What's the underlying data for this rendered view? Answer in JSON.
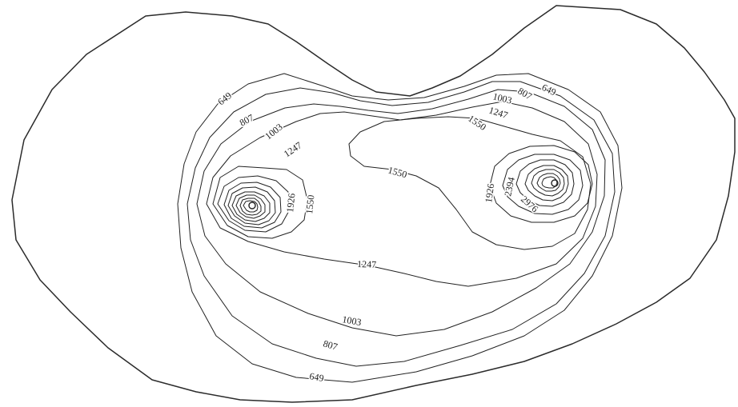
{
  "figure": {
    "description_free": true,
    "colors": {
      "line": "#222222",
      "outer": "#2b2b2b",
      "background": "#ffffff"
    }
  },
  "labels": {
    "l649a": "649",
    "l649b": "649",
    "l649c": "649",
    "l807a": "807",
    "l807b": "807",
    "l807c": "807",
    "l1003a": "1003",
    "l1003b": "1003",
    "l1003c": "1003",
    "l1247a": "1247",
    "l1247b": "1247",
    "l1247c": "1247",
    "l1550a": "1550",
    "l1550b": "1550",
    "l1550c": "1550",
    "l1926a": "1926",
    "l1926b": "1926",
    "l2394": "2394",
    "l2976": "2976"
  }
}
